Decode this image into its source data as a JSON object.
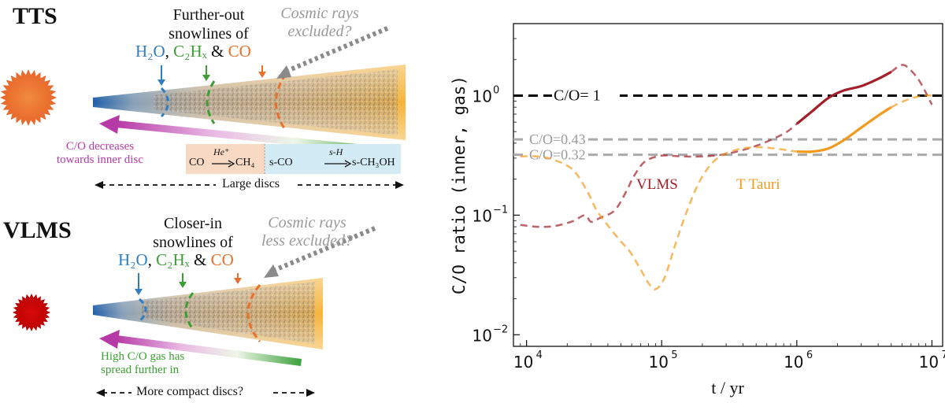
{
  "left": {
    "tts": {
      "label": "TTS",
      "snowlines_title": [
        "Further-out",
        "snowlines of"
      ],
      "cosmic": [
        "Cosmic rays",
        "excluded?"
      ],
      "annotation": [
        "C/O decreases",
        "towards inner disc"
      ],
      "reaction1": {
        "reactant": "CO",
        "catalyst": "He⁺",
        "product": "CH₄"
      },
      "reaction2": {
        "reactant": "s-CO",
        "catalyst": "s-H",
        "product": "s-CH₃OH"
      },
      "disc_size": "Large discs"
    },
    "vlms": {
      "label": "VLMS",
      "snowlines_title": [
        "Closer-in",
        "snowlines of"
      ],
      "cosmic": [
        "Cosmic rays",
        "less excluded?"
      ],
      "annotation": [
        "High C/O gas has",
        "spread further in"
      ],
      "disc_size": "More compact discs?"
    },
    "molecules": {
      "h2o": "H₂O",
      "c2hx": "C₂Hₓ",
      "co": "CO",
      "amp": "&",
      "comma": ","
    }
  },
  "chart_data": {
    "type": "line",
    "xlabel": "t / yr",
    "ylabel": "C/O ratio (inner, gas)",
    "xscale": "log",
    "yscale": "log",
    "xlim": [
      8000,
      12000000
    ],
    "ylim": [
      0.008,
      4
    ],
    "xticks": [
      {
        "value": 10000,
        "base": "10",
        "exp": "4"
      },
      {
        "value": 100000,
        "base": "10",
        "exp": "5"
      },
      {
        "value": 1000000,
        "base": "10",
        "exp": "6"
      },
      {
        "value": 10000000,
        "base": "10",
        "exp": "7"
      }
    ],
    "yticks": [
      {
        "value": 0.01,
        "base": "10",
        "exp": "−2"
      },
      {
        "value": 0.1,
        "base": "10",
        "exp": "−1"
      },
      {
        "value": 1,
        "base": "10",
        "exp": "0"
      }
    ],
    "hlines": [
      {
        "y": 1.0,
        "label": "C/O= 1",
        "color": "#000000"
      },
      {
        "y": 0.43,
        "label": "C/O=0.43",
        "color": "#aaaaaa"
      },
      {
        "y": 0.32,
        "label": "C/O=0.32",
        "color": "#aaaaaa"
      }
    ],
    "series": [
      {
        "name": "VLMS",
        "color": "#a3202a",
        "solid_from": 1000000,
        "solid_to": 5000000,
        "points": [
          [
            9000,
            0.083
          ],
          [
            12000,
            0.08
          ],
          [
            16000,
            0.081
          ],
          [
            22000,
            0.089
          ],
          [
            27000,
            0.1
          ],
          [
            30000,
            0.088
          ],
          [
            35000,
            0.095
          ],
          [
            45000,
            0.11
          ],
          [
            55000,
            0.16
          ],
          [
            62000,
            0.21
          ],
          [
            75000,
            0.28
          ],
          [
            100000,
            0.315
          ],
          [
            140000,
            0.31
          ],
          [
            200000,
            0.31
          ],
          [
            300000,
            0.325
          ],
          [
            500000,
            0.38
          ],
          [
            800000,
            0.48
          ],
          [
            1000000,
            0.58
          ],
          [
            1300000,
            0.74
          ],
          [
            1700000,
            0.95
          ],
          [
            2200000,
            1.1
          ],
          [
            3000000,
            1.2
          ],
          [
            4000000,
            1.38
          ],
          [
            5000000,
            1.58
          ],
          [
            5800000,
            1.78
          ],
          [
            6500000,
            1.75
          ],
          [
            8000000,
            1.35
          ],
          [
            10000000,
            0.84
          ]
        ]
      },
      {
        "name": "T Tauri",
        "color": "#f29a1e",
        "solid_from": 1000000,
        "solid_to": 5000000,
        "points": [
          [
            9000,
            0.31
          ],
          [
            12000,
            0.31
          ],
          [
            16000,
            0.29
          ],
          [
            22000,
            0.24
          ],
          [
            28000,
            0.16
          ],
          [
            33000,
            0.11
          ],
          [
            40000,
            0.082
          ],
          [
            50000,
            0.06
          ],
          [
            58000,
            0.05
          ],
          [
            68000,
            0.037
          ],
          [
            80000,
            0.027
          ],
          [
            90000,
            0.024
          ],
          [
            105000,
            0.03
          ],
          [
            125000,
            0.055
          ],
          [
            150000,
            0.1
          ],
          [
            190000,
            0.19
          ],
          [
            250000,
            0.29
          ],
          [
            350000,
            0.35
          ],
          [
            500000,
            0.37
          ],
          [
            700000,
            0.36
          ],
          [
            1000000,
            0.34
          ],
          [
            1300000,
            0.34
          ],
          [
            1700000,
            0.36
          ],
          [
            2200000,
            0.42
          ],
          [
            3000000,
            0.54
          ],
          [
            4000000,
            0.68
          ],
          [
            5000000,
            0.8
          ],
          [
            6500000,
            0.92
          ],
          [
            8500000,
            1.0
          ],
          [
            10000000,
            1.0
          ]
        ]
      }
    ]
  }
}
